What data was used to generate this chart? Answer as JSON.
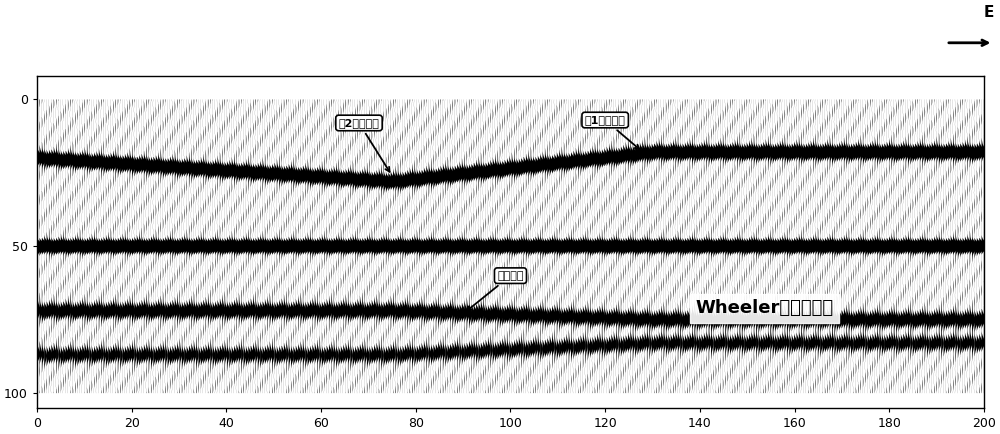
{
  "title": "Wheeler域去橔剔面",
  "xlabel_ticks": [
    0,
    20,
    40,
    60,
    80,
    100,
    120,
    140,
    160,
    180,
    200
  ],
  "ylabel_ticks": [
    0,
    50,
    100
  ],
  "xlim": [
    0,
    200
  ],
  "ylim": [
    105,
    -8
  ],
  "n_traces": 400,
  "n_samples": 200,
  "background_color": "#ffffff",
  "ann1_text": "ᅂ2储层位置",
  "ann2_text": "ᅂ1储层位置",
  "ann3_text": "强反射层",
  "compass_label": "E"
}
